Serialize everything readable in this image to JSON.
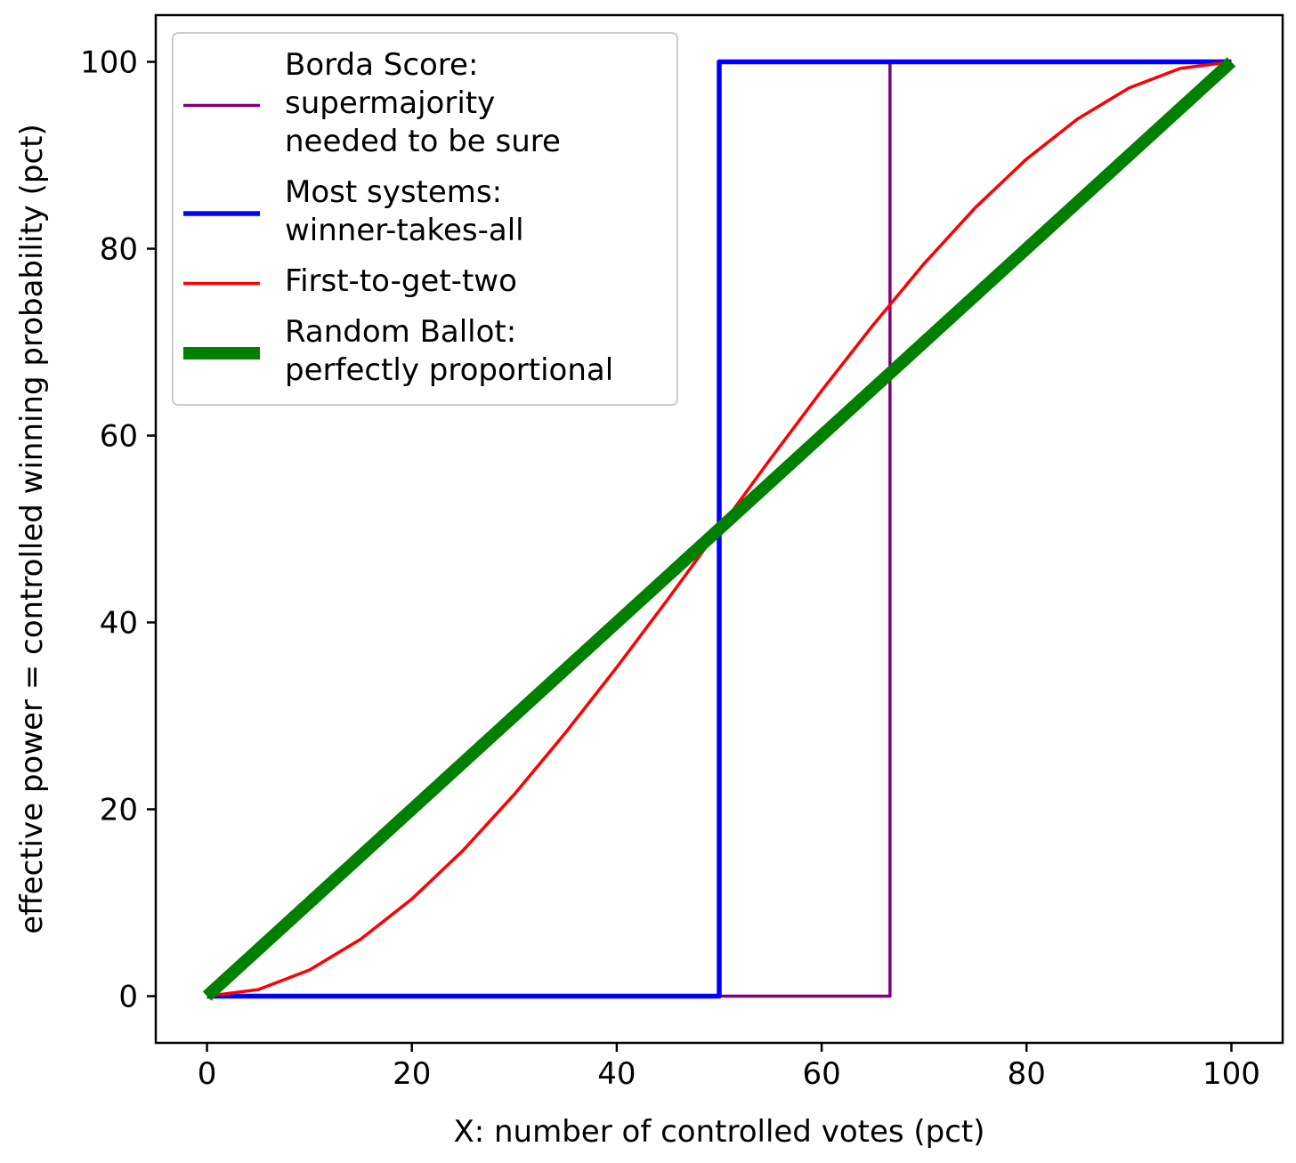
{
  "chart_data": {
    "type": "line",
    "xlabel": "X: number of controlled votes (pct)",
    "ylabel": "effective power = controlled winning probability (pct)",
    "xlim": [
      -5,
      105
    ],
    "ylim": [
      -5,
      105
    ],
    "xticks": [
      0,
      20,
      40,
      60,
      80,
      100
    ],
    "yticks": [
      0,
      20,
      40,
      60,
      80,
      100
    ],
    "xtick_labels": [
      "0",
      "20",
      "40",
      "60",
      "80",
      "100"
    ],
    "ytick_labels": [
      "0",
      "20",
      "40",
      "60",
      "80",
      "100"
    ],
    "grid": false,
    "legend_position": "top-left",
    "series": [
      {
        "name": "Borda Score:\nsupermajority\nneeded to be sure",
        "color": "#800080",
        "style": "thin",
        "x": [
          0,
          66.67,
          66.67,
          100
        ],
        "y": [
          0,
          0,
          100,
          100
        ]
      },
      {
        "name": "Most systems:\nwinner-takes-all",
        "color": "#0000ff",
        "style": "medium",
        "x": [
          0,
          50,
          50,
          100
        ],
        "y": [
          0,
          0,
          100,
          100
        ]
      },
      {
        "name": "First-to-get-two",
        "color": "#ff0000",
        "style": "thin",
        "x": [
          0,
          5,
          10,
          15,
          20,
          25,
          30,
          35,
          40,
          45,
          50,
          55,
          60,
          65,
          70,
          75,
          80,
          85,
          90,
          95,
          100
        ],
        "y": [
          0,
          0.7,
          2.8,
          6.1,
          10.4,
          15.6,
          21.6,
          28.2,
          35.2,
          42.5,
          50,
          57.5,
          64.8,
          71.8,
          78.4,
          84.4,
          89.6,
          93.9,
          97.2,
          99.3,
          100
        ]
      },
      {
        "name": "Random Ballot:\nperfectly proportional",
        "color": "#008000",
        "style": "thick",
        "x": [
          0,
          100
        ],
        "y": [
          0,
          100
        ]
      }
    ]
  }
}
